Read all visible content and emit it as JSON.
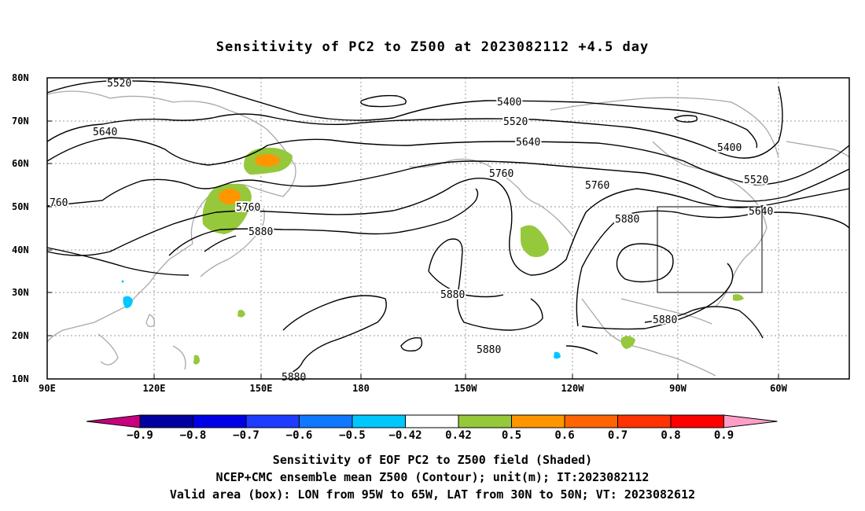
{
  "title": "Sensitivity of PC2 to Z500 at 2023082112 +4.5 day",
  "axes": {
    "lat_labels": [
      "80N",
      "70N",
      "60N",
      "50N",
      "40N",
      "30N",
      "20N",
      "10N"
    ],
    "lon_labels": [
      "90E",
      "120E",
      "150E",
      "180",
      "150W",
      "120W",
      "90W",
      "60W"
    ]
  },
  "contour_labels": [
    {
      "text": "5520",
      "id": "c5520a"
    },
    {
      "text": "5640",
      "id": "c5640a"
    },
    {
      "text": "760",
      "id": "c760a"
    },
    {
      "text": "5760",
      "id": "c5760a"
    },
    {
      "text": "5880",
      "id": "c5880a"
    },
    {
      "text": "5400",
      "id": "c5400a"
    },
    {
      "text": "5520",
      "id": "c5520b"
    },
    {
      "text": "5640",
      "id": "c5640b"
    },
    {
      "text": "5760",
      "id": "c5760b"
    },
    {
      "text": "5760",
      "id": "c5760c"
    },
    {
      "text": "5880",
      "id": "c5880b"
    },
    {
      "text": "5880",
      "id": "c5880c"
    },
    {
      "text": "5880",
      "id": "c5880d"
    },
    {
      "text": "5880",
      "id": "c5880e"
    },
    {
      "text": "5400",
      "id": "c5400b"
    },
    {
      "text": "5520",
      "id": "c5520c"
    },
    {
      "text": "5640",
      "id": "c5640c"
    },
    {
      "text": "5880",
      "id": "c5880f"
    }
  ],
  "valid_box": {
    "lon": "95W to 65W",
    "lat": "30N to 50N"
  },
  "colorbar": {
    "colors": [
      "#c8007f",
      "#0000a0",
      "#0000e6",
      "#1e3cff",
      "#0f78ff",
      "#00c8ff",
      "#ffffff",
      "#96c83c",
      "#ff9600",
      "#ff6400",
      "#ff3200",
      "#ff0000",
      "#ff9ec8"
    ],
    "labels": [
      "-0.9",
      "-0.8",
      "-0.7",
      "-0.6",
      "-0.5",
      "-0.42",
      "0.42",
      "0.5",
      "0.6",
      "0.7",
      "0.8",
      "0.9"
    ]
  },
  "shading_colors": {
    "green": "#96c83c",
    "orange": "#ff9600",
    "cyan": "#00c8ff",
    "coast": "#a9a9a9"
  },
  "caption": {
    "line1": "Sensitivity of EOF PC2 to Z500 field (Shaded)",
    "line2": "NCEP+CMC ensemble mean Z500 (Contour); unit(m); IT:2023082112",
    "line3": "Valid area (box): LON from 95W to 65W, LAT from 30N to 50N; VT: 2023082612"
  }
}
